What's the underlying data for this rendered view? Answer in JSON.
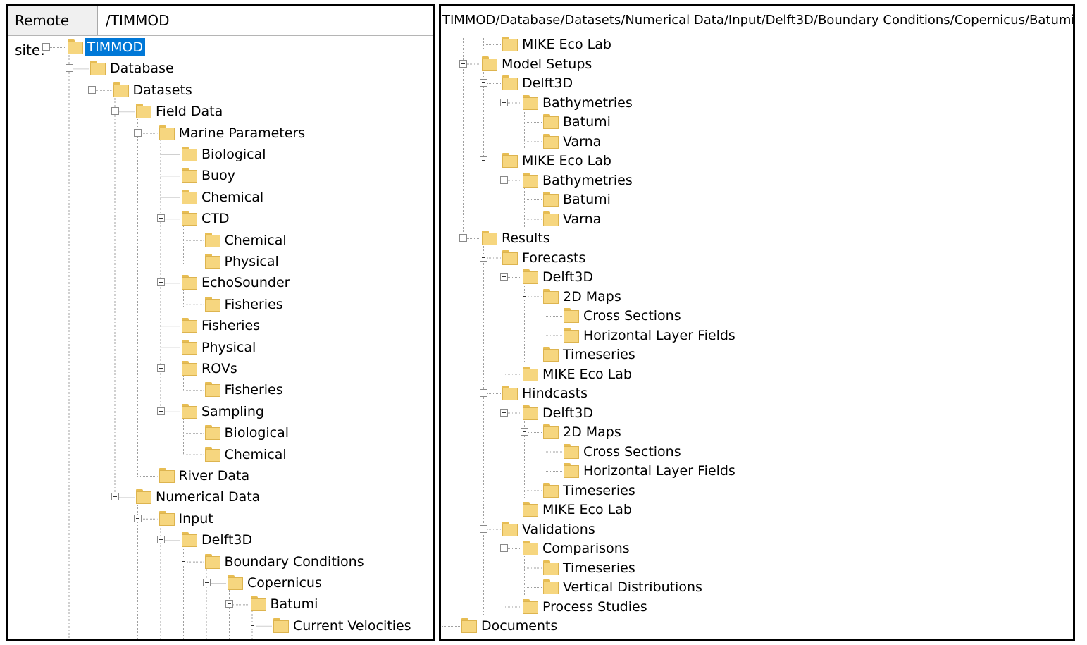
{
  "left_panel": {
    "remote_site_label": "Remote site:",
    "remote_site_value": "/TIMMOD",
    "tree": [
      {
        "label": "TIMMOD",
        "level": 0,
        "expanded": true,
        "selected": true
      },
      {
        "label": "Database",
        "level": 1,
        "expanded": true
      },
      {
        "label": "Datasets",
        "level": 2,
        "expanded": true
      },
      {
        "label": "Field Data",
        "level": 3,
        "expanded": true
      },
      {
        "label": "Marine Parameters",
        "level": 4,
        "expanded": true
      },
      {
        "label": "Biological",
        "level": 5
      },
      {
        "label": "Buoy",
        "level": 5
      },
      {
        "label": "Chemical",
        "level": 5
      },
      {
        "label": "CTD",
        "level": 5,
        "expanded": true
      },
      {
        "label": "Chemical",
        "level": 6
      },
      {
        "label": "Physical",
        "level": 6
      },
      {
        "label": "EchoSounder",
        "level": 5,
        "expanded": true
      },
      {
        "label": "Fisheries",
        "level": 6
      },
      {
        "label": "Fisheries",
        "level": 5
      },
      {
        "label": "Physical",
        "level": 5
      },
      {
        "label": "ROVs",
        "level": 5,
        "expanded": true
      },
      {
        "label": "Fisheries",
        "level": 6
      },
      {
        "label": "Sampling",
        "level": 5,
        "expanded": true
      },
      {
        "label": "Biological",
        "level": 6
      },
      {
        "label": "Chemical",
        "level": 6
      },
      {
        "label": "River Data",
        "level": 4
      },
      {
        "label": "Numerical Data",
        "level": 3,
        "expanded": true
      },
      {
        "label": "Input",
        "level": 4,
        "expanded": true
      },
      {
        "label": "Delft3D",
        "level": 5,
        "expanded": true
      },
      {
        "label": "Boundary Conditions",
        "level": 6,
        "expanded": true
      },
      {
        "label": "Copernicus",
        "level": 7,
        "expanded": true
      },
      {
        "label": "Batumi",
        "level": 8,
        "expanded": true
      },
      {
        "label": "Current Velocities",
        "level": 9,
        "expanded": true
      }
    ]
  },
  "right_panel": {
    "path": "TIMMOD/Database/Datasets/Numerical Data/Input/Delft3D/Boundary Conditions/Copernicus/Batumi/NetCDF",
    "tree": [
      {
        "label": "MIKE Eco Lab",
        "level": 2
      },
      {
        "label": "Model Setups",
        "level": 1,
        "expanded": true
      },
      {
        "label": "Delft3D",
        "level": 2,
        "expanded": true
      },
      {
        "label": "Bathymetries",
        "level": 3,
        "expanded": true
      },
      {
        "label": "Batumi",
        "level": 4
      },
      {
        "label": "Varna",
        "level": 4
      },
      {
        "label": "MIKE Eco Lab",
        "level": 2,
        "expanded": true
      },
      {
        "label": "Bathymetries",
        "level": 3,
        "expanded": true
      },
      {
        "label": "Batumi",
        "level": 4
      },
      {
        "label": "Varna",
        "level": 4
      },
      {
        "label": "Results",
        "level": 1,
        "expanded": true
      },
      {
        "label": "Forecasts",
        "level": 2,
        "expanded": true
      },
      {
        "label": "Delft3D",
        "level": 3,
        "expanded": true
      },
      {
        "label": "2D Maps",
        "level": 4,
        "expanded": true
      },
      {
        "label": "Cross Sections",
        "level": 5
      },
      {
        "label": "Horizontal Layer Fields",
        "level": 5
      },
      {
        "label": "Timeseries",
        "level": 4
      },
      {
        "label": "MIKE Eco Lab",
        "level": 3
      },
      {
        "label": "Hindcasts",
        "level": 2,
        "expanded": true
      },
      {
        "label": "Delft3D",
        "level": 3,
        "expanded": true
      },
      {
        "label": "2D Maps",
        "level": 4,
        "expanded": true
      },
      {
        "label": "Cross Sections",
        "level": 5
      },
      {
        "label": "Horizontal Layer Fields",
        "level": 5
      },
      {
        "label": "Timeseries",
        "level": 4
      },
      {
        "label": "MIKE Eco Lab",
        "level": 3
      },
      {
        "label": "Validations",
        "level": 2,
        "expanded": true
      },
      {
        "label": "Comparisons",
        "level": 3,
        "expanded": true
      },
      {
        "label": "Timeseries",
        "level": 4
      },
      {
        "label": "Vertical Distributions",
        "level": 4
      },
      {
        "label": "Process Studies",
        "level": 3
      },
      {
        "label": "Documents",
        "level": 0
      }
    ]
  },
  "colors": {
    "selection": "#0078d7",
    "folder": "#f6d67f",
    "folder_tab": "#e7bd53",
    "tree_line": "#a0a0a0"
  },
  "icons": {
    "folder": "folder-icon",
    "toggle": "collapse-toggle-icon"
  }
}
